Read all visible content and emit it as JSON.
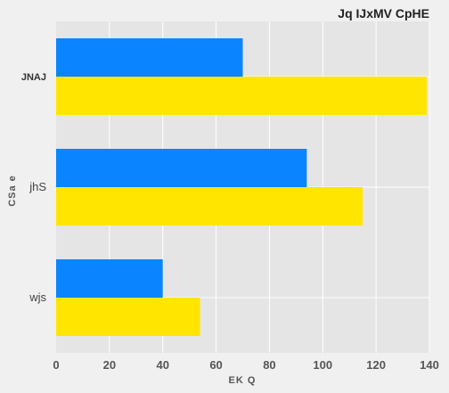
{
  "chart_data": {
    "type": "bar",
    "orientation": "horizontal",
    "title": "Jq IJxMV CpHE",
    "xlabel": "EK Q",
    "ylabel": "CSa e",
    "categories": [
      "JNAJ",
      "jhS",
      "wjs"
    ],
    "xlim": [
      0,
      140
    ],
    "xticks": [
      0,
      20,
      40,
      60,
      80,
      100,
      120,
      140
    ],
    "grid": true,
    "legend": "none",
    "series": [
      {
        "values": [
          70,
          94,
          40
        ],
        "color": "#0a84ff"
      },
      {
        "values": [
          139,
          115,
          54
        ],
        "color": "#ffe500"
      }
    ]
  }
}
